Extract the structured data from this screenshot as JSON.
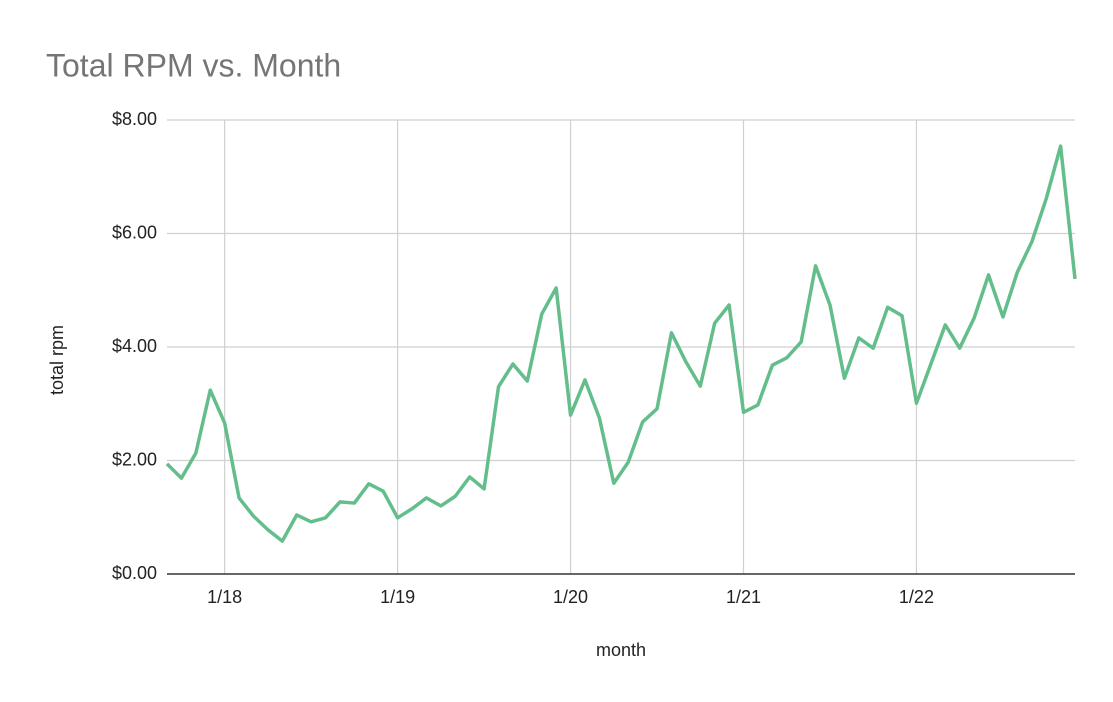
{
  "chart_data": {
    "type": "line",
    "title": "Total RPM vs. Month",
    "x_label": "month",
    "y_label": "total rpm",
    "categories": [
      null,
      null,
      null,
      null,
      "1/18",
      null,
      null,
      null,
      null,
      null,
      null,
      null,
      null,
      null,
      null,
      null,
      "1/19",
      null,
      null,
      null,
      null,
      null,
      null,
      null,
      null,
      null,
      null,
      null,
      "1/20",
      null,
      null,
      null,
      null,
      null,
      null,
      null,
      null,
      null,
      null,
      null,
      "1/21",
      null,
      null,
      null,
      null,
      null,
      null,
      null,
      null,
      null,
      null,
      null,
      "1/22",
      null,
      null,
      null,
      null,
      null,
      null,
      null,
      null,
      null,
      null,
      null
    ],
    "series": [
      {
        "name": "total rpm",
        "color": "#63be8b",
        "values": [
          1.94,
          1.69,
          2.13,
          3.24,
          2.66,
          1.34,
          1.02,
          0.78,
          0.58,
          1.04,
          0.92,
          0.99,
          1.27,
          1.25,
          1.59,
          1.46,
          0.99,
          1.15,
          1.34,
          1.2,
          1.37,
          1.71,
          1.5,
          3.3,
          3.7,
          3.4,
          4.58,
          5.04,
          2.8,
          3.42,
          2.75,
          1.6,
          1.97,
          2.68,
          2.91,
          4.25,
          3.74,
          3.31,
          4.42,
          4.74,
          2.85,
          2.98,
          3.68,
          3.81,
          4.09,
          5.43,
          4.74,
          3.45,
          4.16,
          3.98,
          4.7,
          4.55,
          3.01,
          3.7,
          4.39,
          3.98,
          4.51,
          5.27,
          4.53,
          5.32,
          5.85,
          6.61,
          7.54,
          5.2
        ]
      }
    ],
    "ylim": [
      0,
      8
    ],
    "yticks": [
      {
        "value": 0,
        "label": "$0.00"
      },
      {
        "value": 2,
        "label": "$2.00"
      },
      {
        "value": 4,
        "label": "$4.00"
      },
      {
        "value": 6,
        "label": "$6.00"
      },
      {
        "value": 8,
        "label": "$8.00"
      }
    ],
    "grid": true
  }
}
